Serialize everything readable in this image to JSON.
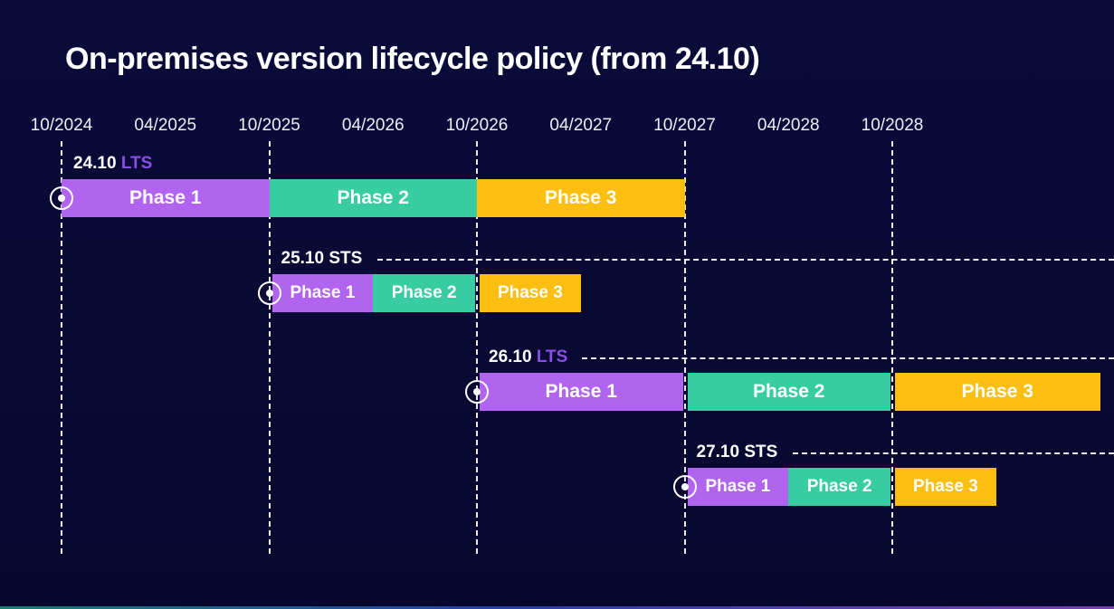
{
  "title": "On-premises version lifecycle policy (from 24.10)",
  "colors": {
    "background": "#0a0a35",
    "phase1": "#b164f0",
    "phase2": "#38cda0",
    "phase3": "#fdbf0f",
    "lts_label": "#8a4fe6",
    "sts_label": "#ffffff",
    "axis_text": "#eceef8",
    "dashed_line": "#ffffff",
    "bar_text": "#ffffff",
    "bottom_strip_left": "#15806f",
    "bottom_strip_mid": "#273fa8",
    "bottom_strip_right": "#7a3fb0"
  },
  "chart_data": {
    "type": "gantt",
    "title": "On-premises version lifecycle policy (from 24.10)",
    "x_axis": {
      "ticks": [
        "10/2024",
        "04/2025",
        "10/2025",
        "04/2026",
        "10/2026",
        "04/2027",
        "10/2027",
        "04/2028",
        "10/2028"
      ],
      "gridlines_at": [
        "10/2024",
        "10/2025",
        "10/2026",
        "10/2027",
        "10/2028"
      ],
      "gridline_style": "vertical dashed white"
    },
    "start_marker": "white circled-dot at each release start date",
    "rows": [
      {
        "release": "24.10",
        "channel": "LTS",
        "start": "10/2024",
        "leader_line": false,
        "phases": [
          {
            "name": "Phase 1",
            "start": "10/2024",
            "end": "10/2025"
          },
          {
            "name": "Phase 2",
            "start": "10/2025",
            "end": "10/2026"
          },
          {
            "name": "Phase 3",
            "start": "10/2026",
            "end": "10/2027"
          }
        ]
      },
      {
        "release": "25.10",
        "channel": "STS",
        "start": "10/2025",
        "leader_line": true,
        "phases": [
          {
            "name": "Phase 1",
            "start": "10/2025",
            "end": "04/2026"
          },
          {
            "name": "Phase 2",
            "start": "04/2026",
            "end": "10/2026"
          },
          {
            "name": "Phase 3",
            "start": "10/2026",
            "end": "04/2027"
          }
        ]
      },
      {
        "release": "26.10",
        "channel": "LTS",
        "start": "10/2026",
        "leader_line": true,
        "phases": [
          {
            "name": "Phase 1",
            "start": "10/2026",
            "end": "10/2027"
          },
          {
            "name": "Phase 2",
            "start": "10/2027",
            "end": "10/2028"
          },
          {
            "name": "Phase 3",
            "start": "10/2028",
            "end": "10/2029"
          }
        ]
      },
      {
        "release": "27.10",
        "channel": "STS",
        "start": "10/2027",
        "leader_line": true,
        "phases": [
          {
            "name": "Phase 1",
            "start": "10/2027",
            "end": "04/2028"
          },
          {
            "name": "Phase 2",
            "start": "04/2028",
            "end": "10/2028"
          },
          {
            "name": "Phase 3",
            "start": "10/2028",
            "end": "04/2029"
          }
        ]
      }
    ]
  }
}
